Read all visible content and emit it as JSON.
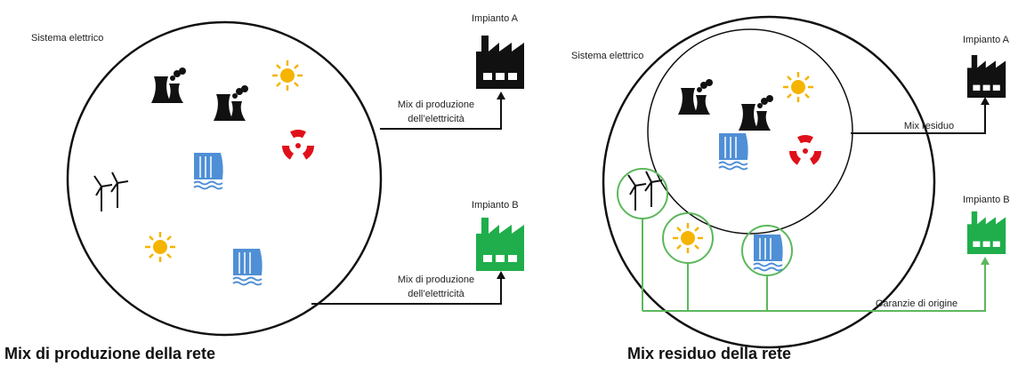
{
  "left": {
    "system_label": "Sistema elettrico",
    "plant_a": {
      "label": "Impianto A",
      "flow": [
        "Mix di produzione",
        "dell’elettricità"
      ]
    },
    "plant_b": {
      "label": "Impianto B",
      "flow": [
        "Mix di produzione",
        "dell’elettricità"
      ]
    },
    "caption": "Mix di produzione della rete"
  },
  "right": {
    "system_label": "Sistema elettrico",
    "plant_a": {
      "label": "Impianto A",
      "flow": "Mix residuo"
    },
    "plant_b": {
      "label": "Impianto B",
      "flow": "Garanzie di origine"
    },
    "caption": "Mix residuo della rete"
  }
}
